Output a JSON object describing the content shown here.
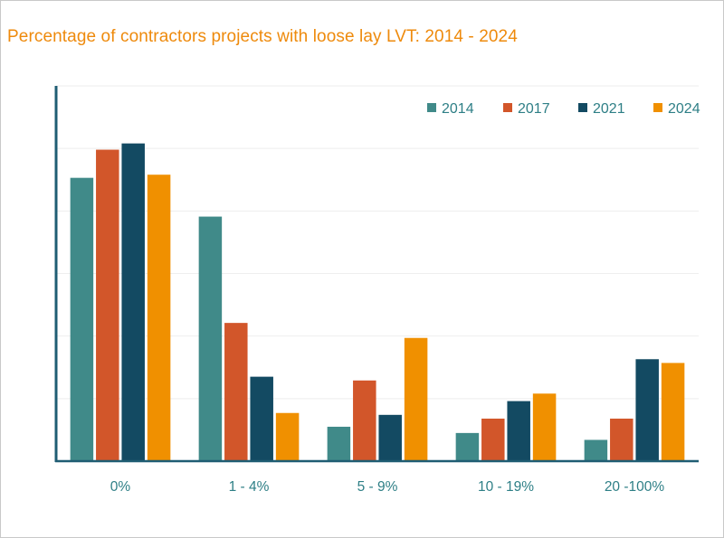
{
  "chart_data": {
    "type": "bar",
    "title": "Percentage of contractors projects with loose lay LVT: 2014 - 2024",
    "xlabel": "",
    "ylabel": "",
    "categories": [
      "0%",
      "1 - 4%",
      "5 - 9%",
      "10 - 19%",
      "20 -100%"
    ],
    "ylim": [
      0,
      60
    ],
    "yticks": [
      0,
      10,
      20,
      30,
      40,
      50,
      60
    ],
    "grid": true,
    "y_tick_labels_shown": false,
    "legend": "top-right",
    "series": [
      {
        "name": "2014",
        "color": "#408a89",
        "values": [
          45.3,
          39.1,
          5.5,
          4.5,
          3.4
        ]
      },
      {
        "name": "2017",
        "color": "#d2562a",
        "values": [
          49.8,
          22.1,
          12.9,
          6.8,
          6.8
        ]
      },
      {
        "name": "2021",
        "color": "#134a62",
        "values": [
          50.8,
          13.5,
          7.4,
          9.6,
          16.3
        ]
      },
      {
        "name": "2024",
        "color": "#f09000",
        "values": [
          45.8,
          7.7,
          19.7,
          10.8,
          15.7
        ]
      }
    ]
  },
  "colors": {
    "title": "#ee8a0c",
    "tick_label": "#2e7f86",
    "axis": "#1f5d73",
    "grid": "#eeeeee"
  }
}
